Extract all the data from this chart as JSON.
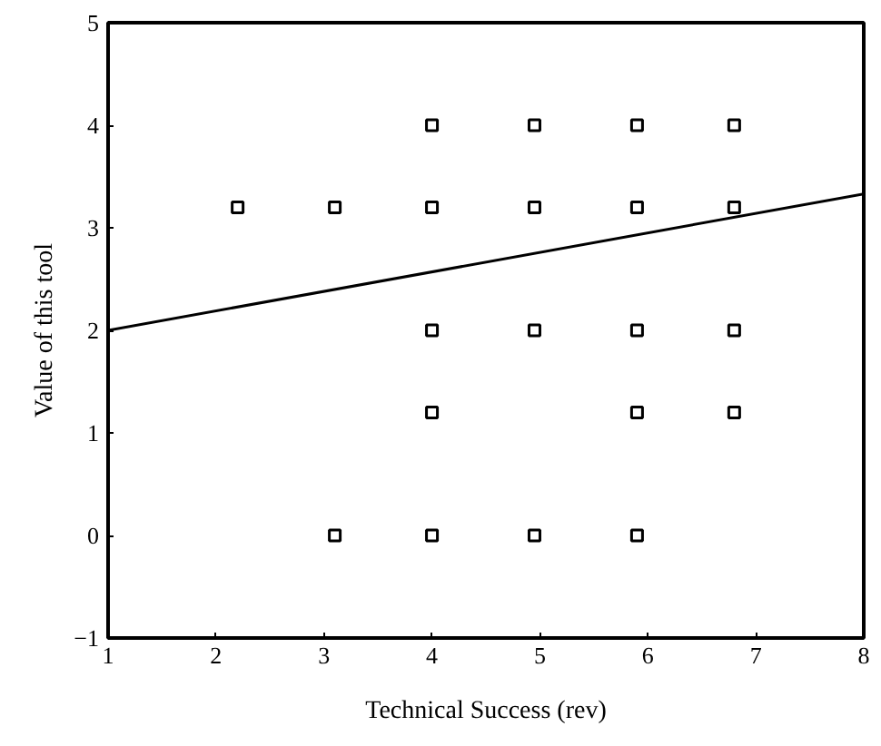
{
  "chart_data": {
    "type": "scatter",
    "xlabel": "Technical Success (rev)",
    "ylabel": "Value of this tool",
    "xlim": [
      1,
      8
    ],
    "ylim": [
      -1,
      5
    ],
    "xticks": [
      1,
      2,
      3,
      4,
      5,
      6,
      7,
      8
    ],
    "yticks": [
      -1,
      0,
      1,
      2,
      3,
      4,
      5
    ],
    "grid": false,
    "series": [
      {
        "marker": "square",
        "color": "#000000",
        "x": [
          4,
          4.95,
          5.9,
          6.8,
          2.2,
          3.1,
          4,
          4.95,
          5.9,
          6.8,
          4,
          4.95,
          5.9,
          6.8,
          4,
          5.9,
          6.8,
          3.1,
          4,
          4.95,
          5.9
        ],
        "values": [
          4,
          4,
          4,
          4,
          3.2,
          3.2,
          3.2,
          3.2,
          3.2,
          3.2,
          2,
          2,
          2,
          2,
          1.2,
          1.2,
          1.2,
          0,
          0,
          0,
          0
        ]
      },
      {
        "type": "line",
        "line_style": "solid",
        "color": "#000000",
        "x": [
          1,
          8
        ],
        "values": [
          2,
          3.33
        ]
      }
    ]
  }
}
